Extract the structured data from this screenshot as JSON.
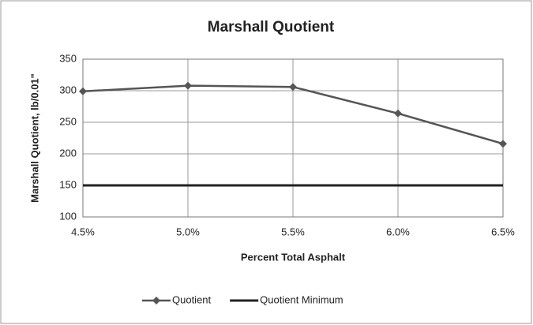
{
  "chart_data": {
    "type": "line",
    "title": "Marshall Quotient",
    "x_label": "Percent Total Asphalt",
    "y_label": "Marshall Quotient, lb/0.01\"",
    "x": [
      4.5,
      5.0,
      5.5,
      6.0,
      6.5
    ],
    "xlim": [
      4.5,
      6.5
    ],
    "xticks": [
      {
        "value": 4.5,
        "label": "4.5%"
      },
      {
        "value": 5.0,
        "label": "5.0%"
      },
      {
        "value": 5.5,
        "label": "5.5%"
      },
      {
        "value": 6.0,
        "label": "6.0%"
      },
      {
        "value": 6.5,
        "label": "6.5%"
      }
    ],
    "ylim": [
      100,
      350
    ],
    "yticks": [
      100,
      150,
      200,
      250,
      300,
      350
    ],
    "grid": true,
    "legend": "bottom",
    "series": [
      {
        "name": "Quotient",
        "color": "#555555",
        "marker": "diamond",
        "values": [
          299,
          308,
          306,
          264,
          216
        ]
      },
      {
        "name": "Quotient Minimum",
        "color": "#222222",
        "values": [
          150,
          150,
          150,
          150,
          150
        ]
      }
    ]
  }
}
